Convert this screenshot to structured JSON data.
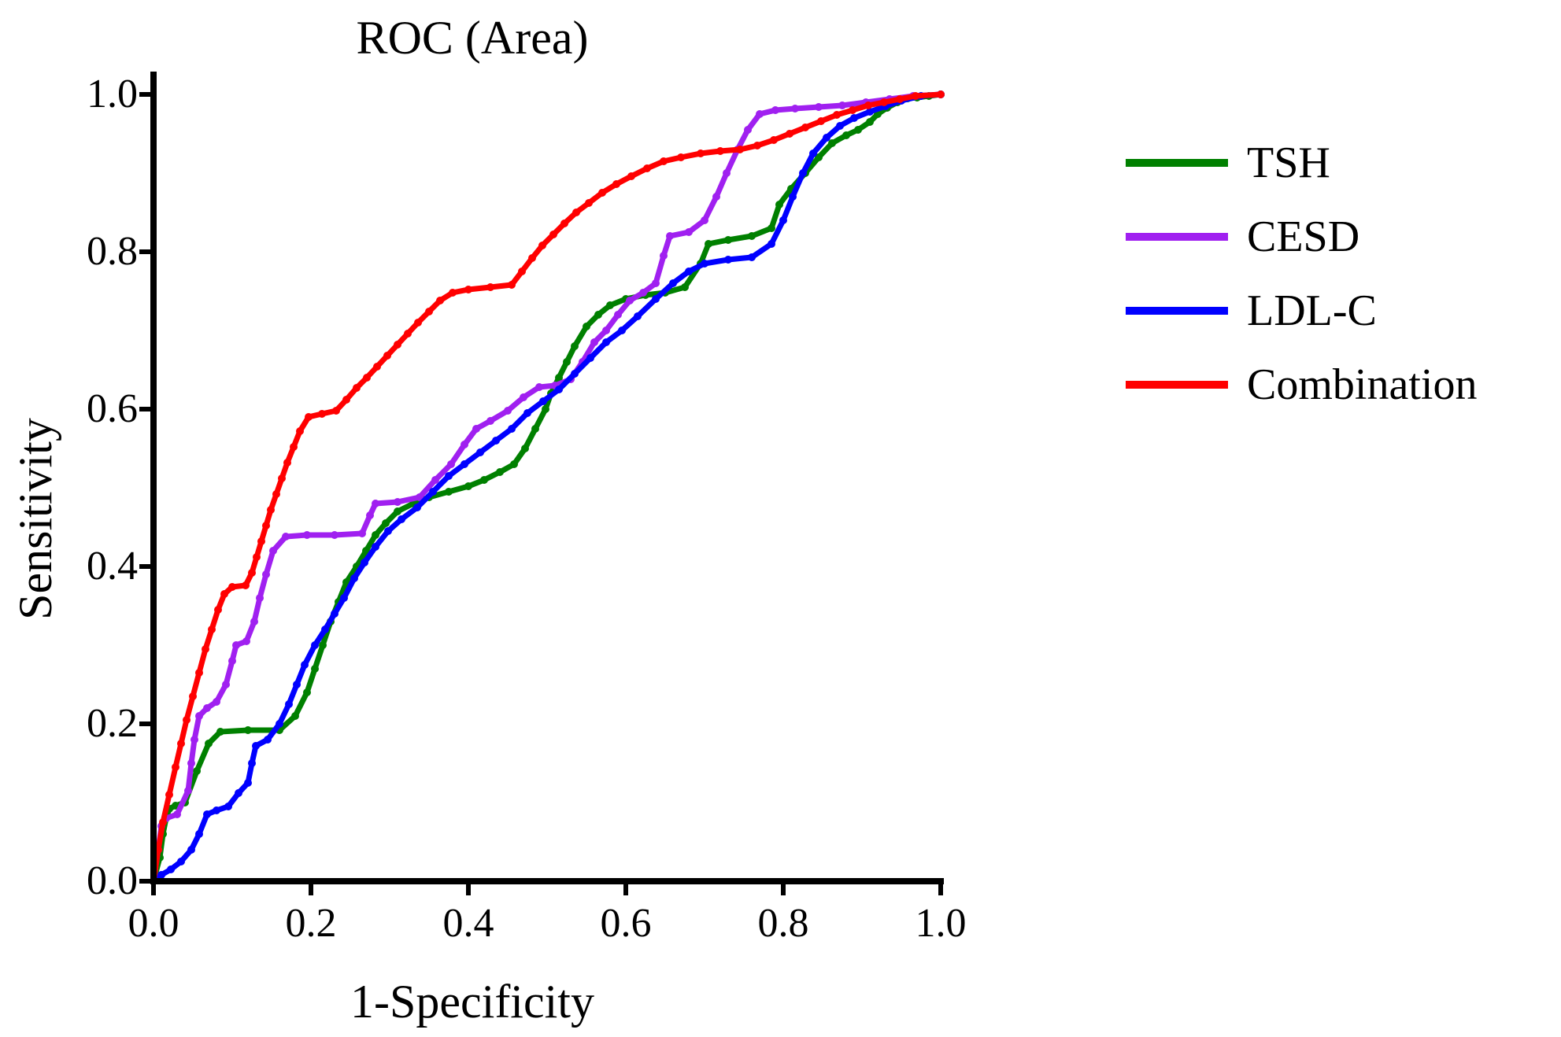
{
  "chart": {
    "type": "line",
    "title": "ROC (Area)",
    "title_fontsize": 60,
    "title_fontfamily": "Times New Roman",
    "xlabel": "1-Specificity",
    "ylabel": "Sensitivity",
    "label_fontsize": 60,
    "tick_fontsize": 52,
    "background_color": "#ffffff",
    "axis_color": "#000000",
    "axis_linewidth": 8,
    "xlim": [
      0,
      1
    ],
    "ylim": [
      0,
      1
    ],
    "xticks": [
      0.0,
      0.2,
      0.4,
      0.6,
      0.8,
      1.0
    ],
    "yticks": [
      0.0,
      0.2,
      0.4,
      0.6,
      0.8,
      1.0
    ],
    "xtick_labels": [
      "0.0",
      "0.2",
      "0.4",
      "0.6",
      "0.8",
      "1.0"
    ],
    "ytick_labels": [
      "0.0",
      "0.2",
      "0.4",
      "0.6",
      "0.8",
      "1.0"
    ],
    "tick_length_major": 18,
    "tick_linewidth": 6,
    "grid": false,
    "line_width": 7,
    "marker_size": 5,
    "marker_shape": "circle",
    "legend": {
      "position": "right",
      "swatch_width": 130,
      "swatch_height": 10,
      "fontsize": 56,
      "item_spacing": 30
    },
    "series": [
      {
        "name": "TSH",
        "color": "#008000",
        "points": [
          [
            0.0,
            0.0
          ],
          [
            0.008,
            0.03
          ],
          [
            0.012,
            0.06
          ],
          [
            0.016,
            0.08
          ],
          [
            0.02,
            0.092
          ],
          [
            0.028,
            0.096
          ],
          [
            0.04,
            0.1
          ],
          [
            0.055,
            0.14
          ],
          [
            0.07,
            0.175
          ],
          [
            0.085,
            0.19
          ],
          [
            0.12,
            0.192
          ],
          [
            0.16,
            0.192
          ],
          [
            0.18,
            0.21
          ],
          [
            0.195,
            0.24
          ],
          [
            0.205,
            0.27
          ],
          [
            0.215,
            0.3
          ],
          [
            0.225,
            0.33
          ],
          [
            0.235,
            0.355
          ],
          [
            0.245,
            0.38
          ],
          [
            0.258,
            0.4
          ],
          [
            0.27,
            0.42
          ],
          [
            0.282,
            0.44
          ],
          [
            0.295,
            0.455
          ],
          [
            0.31,
            0.47
          ],
          [
            0.33,
            0.48
          ],
          [
            0.35,
            0.488
          ],
          [
            0.375,
            0.495
          ],
          [
            0.4,
            0.502
          ],
          [
            0.42,
            0.51
          ],
          [
            0.44,
            0.52
          ],
          [
            0.458,
            0.53
          ],
          [
            0.472,
            0.55
          ],
          [
            0.485,
            0.575
          ],
          [
            0.498,
            0.6
          ],
          [
            0.505,
            0.62
          ],
          [
            0.515,
            0.64
          ],
          [
            0.525,
            0.66
          ],
          [
            0.535,
            0.68
          ],
          [
            0.55,
            0.705
          ],
          [
            0.565,
            0.72
          ],
          [
            0.58,
            0.732
          ],
          [
            0.6,
            0.74
          ],
          [
            0.625,
            0.745
          ],
          [
            0.65,
            0.748
          ],
          [
            0.675,
            0.755
          ],
          [
            0.695,
            0.785
          ],
          [
            0.705,
            0.81
          ],
          [
            0.73,
            0.815
          ],
          [
            0.76,
            0.82
          ],
          [
            0.785,
            0.83
          ],
          [
            0.795,
            0.86
          ],
          [
            0.81,
            0.88
          ],
          [
            0.828,
            0.9
          ],
          [
            0.845,
            0.92
          ],
          [
            0.862,
            0.938
          ],
          [
            0.88,
            0.948
          ],
          [
            0.895,
            0.955
          ],
          [
            0.91,
            0.965
          ],
          [
            0.92,
            0.975
          ],
          [
            0.932,
            0.983
          ],
          [
            0.945,
            0.99
          ],
          [
            0.958,
            0.995
          ],
          [
            0.97,
            0.996
          ],
          [
            0.985,
            0.998
          ],
          [
            1.0,
            1.0
          ]
        ]
      },
      {
        "name": "CESD",
        "color": "#a020f0",
        "points": [
          [
            0.0,
            0.0
          ],
          [
            0.006,
            0.04
          ],
          [
            0.01,
            0.07
          ],
          [
            0.016,
            0.08
          ],
          [
            0.03,
            0.085
          ],
          [
            0.044,
            0.115
          ],
          [
            0.048,
            0.15
          ],
          [
            0.052,
            0.18
          ],
          [
            0.058,
            0.21
          ],
          [
            0.068,
            0.22
          ],
          [
            0.08,
            0.228
          ],
          [
            0.092,
            0.25
          ],
          [
            0.1,
            0.28
          ],
          [
            0.105,
            0.3
          ],
          [
            0.118,
            0.305
          ],
          [
            0.128,
            0.33
          ],
          [
            0.135,
            0.36
          ],
          [
            0.143,
            0.39
          ],
          [
            0.152,
            0.42
          ],
          [
            0.168,
            0.438
          ],
          [
            0.195,
            0.44
          ],
          [
            0.23,
            0.44
          ],
          [
            0.265,
            0.442
          ],
          [
            0.275,
            0.465
          ],
          [
            0.282,
            0.48
          ],
          [
            0.31,
            0.482
          ],
          [
            0.338,
            0.488
          ],
          [
            0.358,
            0.51
          ],
          [
            0.378,
            0.53
          ],
          [
            0.395,
            0.555
          ],
          [
            0.41,
            0.575
          ],
          [
            0.428,
            0.585
          ],
          [
            0.45,
            0.598
          ],
          [
            0.47,
            0.615
          ],
          [
            0.49,
            0.628
          ],
          [
            0.51,
            0.63
          ],
          [
            0.53,
            0.638
          ],
          [
            0.545,
            0.66
          ],
          [
            0.56,
            0.685
          ],
          [
            0.575,
            0.7
          ],
          [
            0.59,
            0.72
          ],
          [
            0.605,
            0.738
          ],
          [
            0.622,
            0.748
          ],
          [
            0.638,
            0.76
          ],
          [
            0.648,
            0.795
          ],
          [
            0.656,
            0.82
          ],
          [
            0.68,
            0.825
          ],
          [
            0.7,
            0.84
          ],
          [
            0.715,
            0.87
          ],
          [
            0.728,
            0.9
          ],
          [
            0.742,
            0.93
          ],
          [
            0.755,
            0.955
          ],
          [
            0.77,
            0.975
          ],
          [
            0.79,
            0.98
          ],
          [
            0.815,
            0.982
          ],
          [
            0.845,
            0.984
          ],
          [
            0.875,
            0.986
          ],
          [
            0.905,
            0.99
          ],
          [
            0.935,
            0.994
          ],
          [
            0.965,
            0.998
          ],
          [
            1.0,
            1.0
          ]
        ]
      },
      {
        "name": "LDL-C",
        "color": "#0000ff",
        "points": [
          [
            0.0,
            0.0
          ],
          [
            0.01,
            0.008
          ],
          [
            0.022,
            0.015
          ],
          [
            0.035,
            0.025
          ],
          [
            0.048,
            0.04
          ],
          [
            0.058,
            0.06
          ],
          [
            0.068,
            0.085
          ],
          [
            0.08,
            0.09
          ],
          [
            0.095,
            0.095
          ],
          [
            0.108,
            0.112
          ],
          [
            0.12,
            0.125
          ],
          [
            0.125,
            0.15
          ],
          [
            0.13,
            0.172
          ],
          [
            0.145,
            0.18
          ],
          [
            0.16,
            0.2
          ],
          [
            0.172,
            0.225
          ],
          [
            0.182,
            0.25
          ],
          [
            0.192,
            0.275
          ],
          [
            0.205,
            0.3
          ],
          [
            0.218,
            0.32
          ],
          [
            0.23,
            0.34
          ],
          [
            0.242,
            0.36
          ],
          [
            0.255,
            0.385
          ],
          [
            0.268,
            0.405
          ],
          [
            0.282,
            0.425
          ],
          [
            0.298,
            0.445
          ],
          [
            0.315,
            0.46
          ],
          [
            0.335,
            0.475
          ],
          [
            0.355,
            0.495
          ],
          [
            0.375,
            0.515
          ],
          [
            0.395,
            0.53
          ],
          [
            0.415,
            0.545
          ],
          [
            0.435,
            0.56
          ],
          [
            0.455,
            0.575
          ],
          [
            0.475,
            0.595
          ],
          [
            0.495,
            0.61
          ],
          [
            0.515,
            0.625
          ],
          [
            0.535,
            0.645
          ],
          [
            0.555,
            0.665
          ],
          [
            0.575,
            0.685
          ],
          [
            0.595,
            0.7
          ],
          [
            0.615,
            0.718
          ],
          [
            0.638,
            0.74
          ],
          [
            0.66,
            0.76
          ],
          [
            0.68,
            0.775
          ],
          [
            0.7,
            0.785
          ],
          [
            0.73,
            0.79
          ],
          [
            0.76,
            0.793
          ],
          [
            0.785,
            0.81
          ],
          [
            0.8,
            0.84
          ],
          [
            0.812,
            0.87
          ],
          [
            0.825,
            0.9
          ],
          [
            0.838,
            0.925
          ],
          [
            0.855,
            0.945
          ],
          [
            0.872,
            0.96
          ],
          [
            0.89,
            0.97
          ],
          [
            0.91,
            0.978
          ],
          [
            0.93,
            0.985
          ],
          [
            0.95,
            0.992
          ],
          [
            0.975,
            0.998
          ],
          [
            1.0,
            1.0
          ]
        ]
      },
      {
        "name": "Combination",
        "color": "#ff0000",
        "points": [
          [
            0.0,
            0.0
          ],
          [
            0.006,
            0.04
          ],
          [
            0.012,
            0.075
          ],
          [
            0.02,
            0.11
          ],
          [
            0.028,
            0.145
          ],
          [
            0.035,
            0.175
          ],
          [
            0.042,
            0.205
          ],
          [
            0.05,
            0.235
          ],
          [
            0.058,
            0.265
          ],
          [
            0.066,
            0.295
          ],
          [
            0.074,
            0.32
          ],
          [
            0.082,
            0.345
          ],
          [
            0.09,
            0.365
          ],
          [
            0.1,
            0.374
          ],
          [
            0.117,
            0.376
          ],
          [
            0.125,
            0.392
          ],
          [
            0.131,
            0.412
          ],
          [
            0.137,
            0.432
          ],
          [
            0.143,
            0.452
          ],
          [
            0.149,
            0.472
          ],
          [
            0.156,
            0.492
          ],
          [
            0.163,
            0.512
          ],
          [
            0.17,
            0.532
          ],
          [
            0.178,
            0.552
          ],
          [
            0.186,
            0.572
          ],
          [
            0.197,
            0.59
          ],
          [
            0.214,
            0.594
          ],
          [
            0.232,
            0.598
          ],
          [
            0.245,
            0.612
          ],
          [
            0.258,
            0.627
          ],
          [
            0.271,
            0.64
          ],
          [
            0.284,
            0.654
          ],
          [
            0.297,
            0.668
          ],
          [
            0.31,
            0.682
          ],
          [
            0.323,
            0.696
          ],
          [
            0.336,
            0.71
          ],
          [
            0.35,
            0.724
          ],
          [
            0.364,
            0.738
          ],
          [
            0.38,
            0.748
          ],
          [
            0.4,
            0.752
          ],
          [
            0.428,
            0.755
          ],
          [
            0.455,
            0.758
          ],
          [
            0.468,
            0.775
          ],
          [
            0.481,
            0.792
          ],
          [
            0.494,
            0.808
          ],
          [
            0.508,
            0.822
          ],
          [
            0.522,
            0.836
          ],
          [
            0.537,
            0.85
          ],
          [
            0.553,
            0.862
          ],
          [
            0.57,
            0.875
          ],
          [
            0.588,
            0.886
          ],
          [
            0.607,
            0.896
          ],
          [
            0.627,
            0.906
          ],
          [
            0.648,
            0.915
          ],
          [
            0.67,
            0.92
          ],
          [
            0.695,
            0.925
          ],
          [
            0.72,
            0.928
          ],
          [
            0.745,
            0.93
          ],
          [
            0.767,
            0.935
          ],
          [
            0.788,
            0.942
          ],
          [
            0.808,
            0.95
          ],
          [
            0.828,
            0.958
          ],
          [
            0.848,
            0.966
          ],
          [
            0.868,
            0.974
          ],
          [
            0.888,
            0.98
          ],
          [
            0.908,
            0.986
          ],
          [
            0.928,
            0.99
          ],
          [
            0.948,
            0.994
          ],
          [
            0.968,
            0.998
          ],
          [
            1.0,
            1.0
          ]
        ]
      }
    ]
  }
}
